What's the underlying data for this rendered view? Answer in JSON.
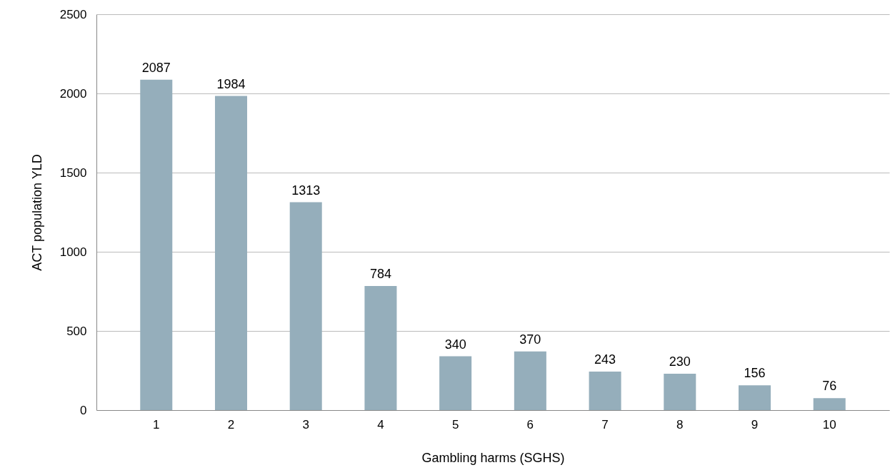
{
  "chart_data": {
    "type": "bar",
    "xlabel": "Gambling harms (SGHS)",
    "ylabel": "ACT population YLD",
    "categories": [
      "1",
      "2",
      "3",
      "4",
      "5",
      "6",
      "7",
      "8",
      "9",
      "10"
    ],
    "values": [
      2087,
      1984,
      1313,
      784,
      340,
      370,
      243,
      230,
      156,
      76
    ],
    "color": "#95aebb",
    "ylim": [
      0,
      2500
    ],
    "yticks": [
      0,
      500,
      1000,
      1500,
      2000,
      2500
    ],
    "grid": "y",
    "data_labels": true
  }
}
